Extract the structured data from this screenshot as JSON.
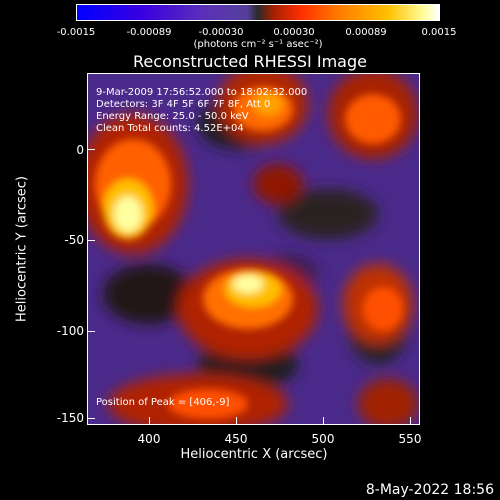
{
  "colorbar": {
    "ticks": [
      "-0.0015",
      "-0.00089",
      "-0.00030",
      "0.00030",
      "0.00089",
      "0.0015"
    ],
    "units": "(photons cm⁻² s⁻¹ asec⁻²)",
    "colors": [
      "#0000ff",
      "#5a30b8",
      "#2a2a2a",
      "#ff3000",
      "#ffc000",
      "#ffffff"
    ]
  },
  "title": "Reconstructed RHESSI Image",
  "annotations": {
    "time": "9-Mar-2009 17:56:52.000 to 18:02:32.000",
    "detectors": "Detectors: 3F 4F 5F 6F 7F 8F, Att 0",
    "energy": "Energy Range: 25.0 - 50.0 keV",
    "clean": "Clean     Total counts: 4.52E+04",
    "peak": "Position of Peak = [406,-9]"
  },
  "axes": {
    "xlabel": "Heliocentric X (arcsec)",
    "ylabel": "Heliocentric Y (arcsec)",
    "xticks": [
      "400",
      "450",
      "500",
      "550"
    ],
    "yticks": [
      "0",
      "-50",
      "-100",
      "-150"
    ]
  },
  "footer": {
    "date": "8-May-2022 18:56"
  }
}
